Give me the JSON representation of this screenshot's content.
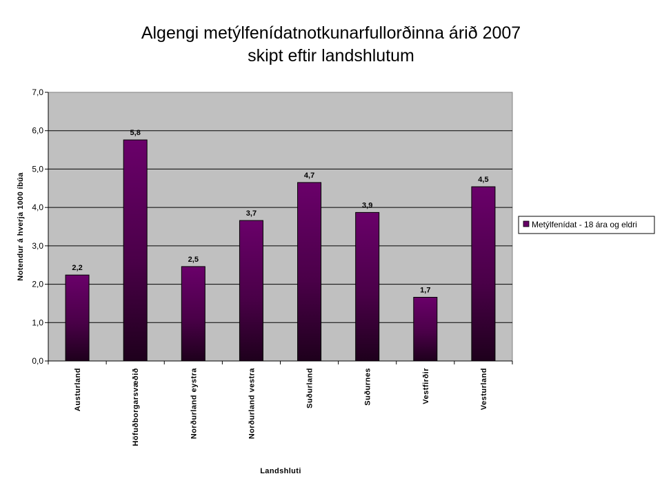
{
  "chart_data": {
    "type": "bar",
    "title": [
      "Algengi metýlfenídatnotkunarfullorðinna árið 2007",
      "skipt eftir landshlutum"
    ],
    "xlabel": "Landshluti",
    "ylabel": "Notendur á hverja 1000 íbúa",
    "categories": [
      "Austurland",
      "Höfuðborgarsvæðið",
      "Norðurland eystra",
      "Norðurland vestra",
      "Suðurland",
      "Suðurnes",
      "Vestfirðir",
      "Vesturland"
    ],
    "series": [
      {
        "name": "Metýlfenídat - 18 ára og eldri",
        "values": [
          2.24,
          5.76,
          2.46,
          3.66,
          4.65,
          3.87,
          1.66,
          4.54
        ],
        "labels": [
          "2,2",
          "5,8",
          "2,5",
          "3,7",
          "4,7",
          "3,9",
          "1,7",
          "4,5"
        ],
        "color": "#660066"
      }
    ],
    "ylim": [
      0,
      7
    ],
    "yticks": [
      "0,0",
      "1,0",
      "2,0",
      "3,0",
      "4,0",
      "5,0",
      "6,0",
      "7,0"
    ],
    "grid": true,
    "legend_position": "right",
    "plot_background": "#c0c0c0"
  }
}
